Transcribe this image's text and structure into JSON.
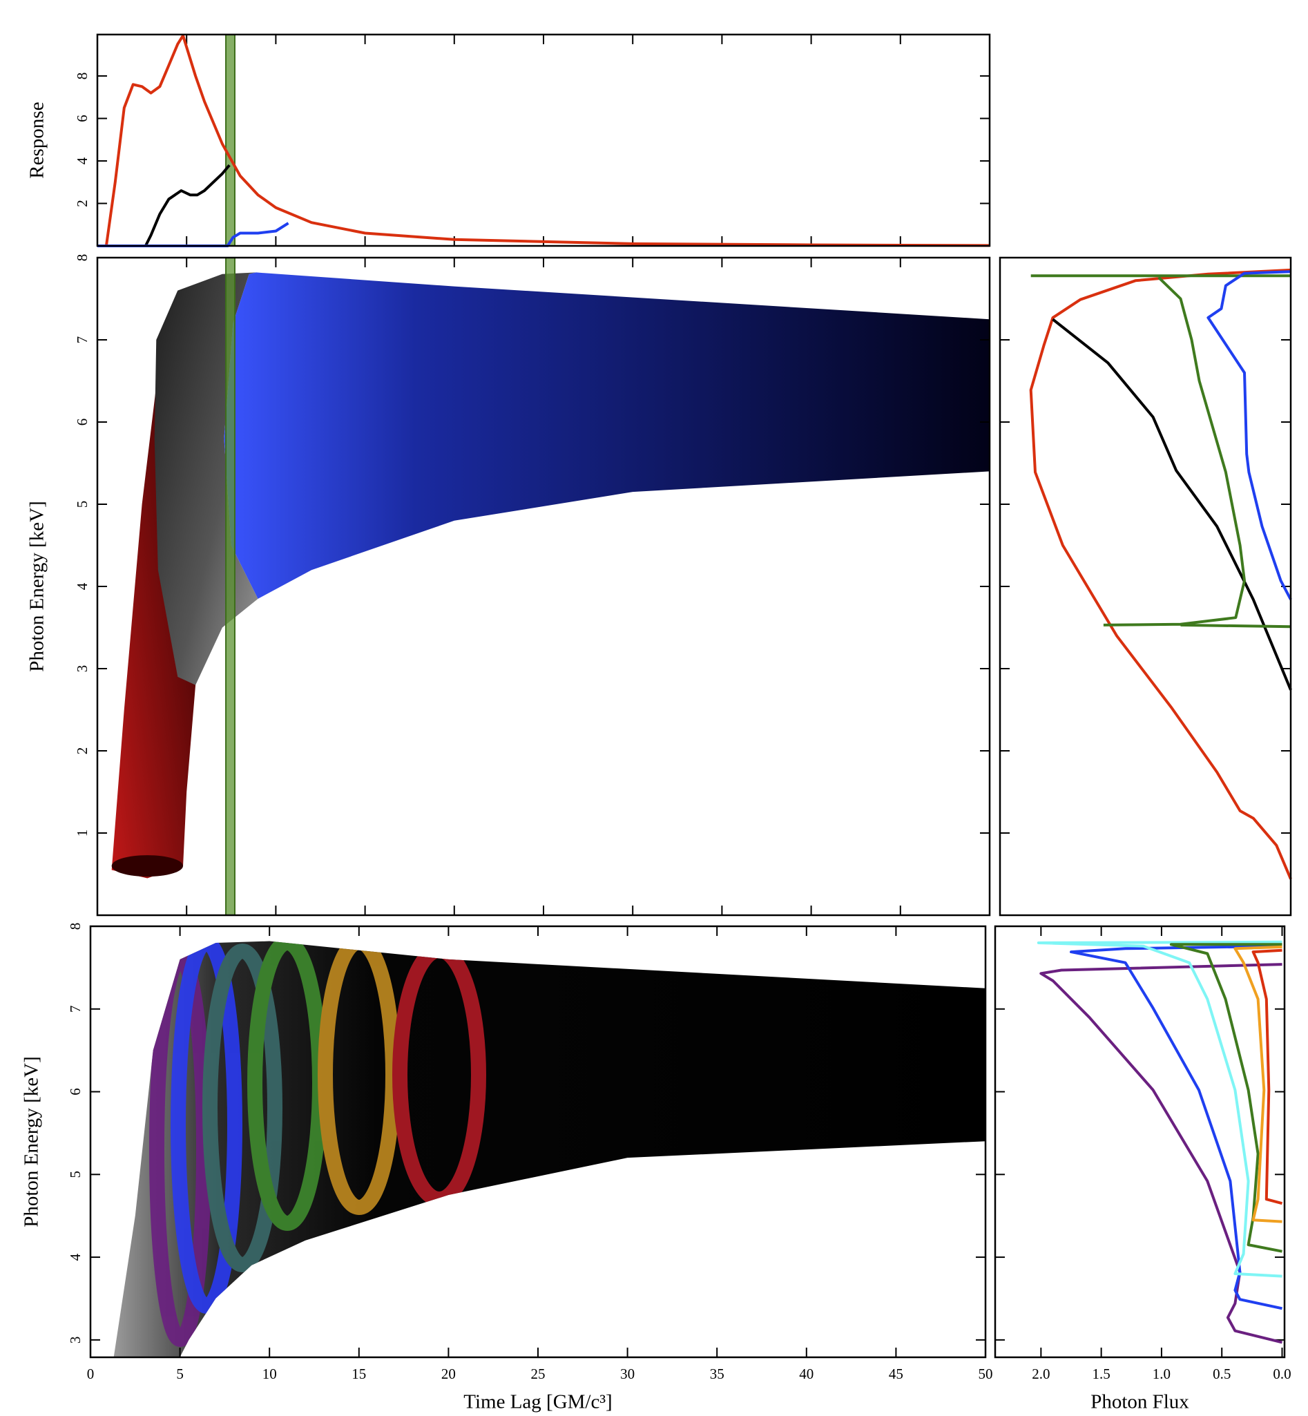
{
  "chart_data": [
    {
      "type": "line",
      "ylabel": "Response",
      "xlim": [
        0,
        50
      ],
      "ylim": [
        0,
        9.95
      ],
      "yticks": [
        2,
        4,
        6,
        8
      ],
      "highlight": [
        7.2,
        7.7
      ],
      "highlight_color": "#5e9433",
      "series": [
        {
          "color": "#d9300f",
          "x": [
            0.5,
            1,
            1.5,
            2,
            2.5,
            3,
            3.5,
            4,
            4.5,
            4.8,
            5.5,
            6,
            7,
            8,
            9,
            10,
            12,
            15,
            20,
            30,
            40,
            50
          ],
          "values": [
            0,
            3,
            6.5,
            7.6,
            7.5,
            7.2,
            7.5,
            8.5,
            9.5,
            9.9,
            8,
            6.8,
            4.8,
            3.3,
            2.4,
            1.8,
            1.1,
            0.6,
            0.3,
            0.1,
            0.05,
            0.02
          ]
        },
        {
          "color": "#000000",
          "x": [
            2.7,
            3,
            3.5,
            4,
            4.7,
            5.2,
            5.6,
            6,
            7,
            7.4
          ],
          "values": [
            0,
            0.5,
            1.5,
            2.2,
            2.6,
            2.4,
            2.4,
            2.6,
            3.4,
            3.8
          ]
        },
        {
          "color": "#1f3ff0",
          "x": [
            0,
            7.3,
            7.6,
            8,
            9,
            10,
            10.7
          ],
          "values": [
            0,
            0,
            0.4,
            0.6,
            0.6,
            0.7,
            1.07
          ]
        }
      ]
    },
    {
      "type": "surface",
      "ylabel": "Photon Energy [keV]",
      "xlim": [
        0,
        50
      ],
      "ylim": [
        0,
        8
      ],
      "yticks": [
        1,
        2,
        3,
        4,
        5,
        6,
        7,
        8
      ]
    },
    {
      "type": "line",
      "xlim": [
        2.64,
        0
      ],
      "ylim": [
        0,
        8
      ],
      "series": [
        {
          "color": "#d9300f",
          "flux": [
            0,
            0.13,
            0.34,
            0.46,
            0.67,
            1.08,
            1.58,
            2.07,
            2.32,
            2.36,
            2.24,
            2.16,
            1.91,
            1.41,
            0.75,
            0
          ],
          "energy": [
            0.44,
            0.85,
            1.18,
            1.27,
            1.74,
            2.52,
            3.4,
            4.5,
            5.39,
            6.39,
            6.94,
            7.27,
            7.49,
            7.72,
            7.8,
            7.85
          ]
        },
        {
          "color": "#000000",
          "flux": [
            2.16,
            1.66,
            1.25,
            1.04,
            0.67,
            0.34,
            0
          ],
          "energy": [
            7.25,
            6.72,
            6.06,
            5.41,
            4.73,
            3.84,
            2.74
          ]
        },
        {
          "color": "#3f7a1e",
          "flux": [
            2.36,
            0,
            null,
            1.2,
            1.0,
            0.9,
            0.83,
            0.59,
            0.46,
            0.42,
            0.5,
            1.0,
            1.7,
            null,
            1.0,
            0
          ],
          "energy": [
            7.78,
            7.78,
            null,
            7.76,
            7.5,
            7.0,
            6.5,
            5.39,
            4.5,
            4.07,
            3.62,
            3.54,
            3.53,
            null,
            3.53,
            3.51
          ]
        },
        {
          "color": "#1f3ff0",
          "flux": [
            0,
            0.42,
            0.59,
            0.63,
            0.75,
            0.42,
            0.4,
            0.38,
            0.26,
            0.09,
            0
          ],
          "energy": [
            7.83,
            7.81,
            7.66,
            7.38,
            7.27,
            6.6,
            5.61,
            5.39,
            4.73,
            4.07,
            3.84
          ]
        }
      ]
    },
    {
      "type": "surface",
      "xlabel": "Time Lag [GM/c³]",
      "ylabel": "Photon Energy [keV]",
      "xlim": [
        0,
        50
      ],
      "xticks": [
        0,
        5,
        10,
        15,
        20,
        25,
        30,
        35,
        40,
        45,
        50
      ],
      "ylim": [
        2.79,
        8
      ],
      "yticks": [
        3,
        4,
        5,
        6,
        7,
        8
      ]
    },
    {
      "type": "line",
      "xlabel": "Photon Flux",
      "xlim": [
        2.38,
        -0.02
      ],
      "ylim": [
        2.79,
        8
      ],
      "xticks": [
        {
          "value": 2,
          "label": "2.0"
        },
        1.5,
        {
          "value": 1,
          "label": "1.0"
        },
        0.5,
        {
          "value": 0,
          "label": "0.0"
        }
      ],
      "series": [
        {
          "color": "#6a2080",
          "flux": [
            0,
            0.39,
            0.45,
            0.39,
            0.35,
            0.62,
            1.07,
            1.6,
            1.9,
            2.0,
            1.83,
            0
          ],
          "energy": [
            2.97,
            3.11,
            3.27,
            3.44,
            3.82,
            4.92,
            6.02,
            6.9,
            7.34,
            7.43,
            7.47,
            7.54
          ]
        },
        {
          "color": "#1f3ff0",
          "flux": [
            0,
            0.35,
            0.39,
            0.35,
            0.43,
            0.69,
            1.07,
            1.3,
            1.75,
            1.3,
            0
          ],
          "energy": [
            3.38,
            3.49,
            3.6,
            3.82,
            4.92,
            6.02,
            7.01,
            7.56,
            7.69,
            7.73,
            7.76
          ]
        },
        {
          "color": "#7ff5f5",
          "flux": [
            0,
            0.39,
            0.32,
            0.28,
            0.39,
            0.62,
            0.77,
            1.15,
            2.02,
            0
          ],
          "energy": [
            3.77,
            3.8,
            4.04,
            4.92,
            6.02,
            7.12,
            7.56,
            7.76,
            7.8,
            7.81
          ]
        },
        {
          "color": "#3f7a1e",
          "flux": [
            0,
            0.28,
            0.24,
            0.2,
            0.28,
            0.47,
            0.62,
            0.92,
            0
          ],
          "energy": [
            4.07,
            4.15,
            4.48,
            5.25,
            6.02,
            7.12,
            7.67,
            7.78,
            7.78
          ]
        },
        {
          "color": "#f0a020",
          "flux": [
            0,
            0.24,
            0.2,
            0.15,
            0.2,
            0.32,
            0.39,
            0
          ],
          "energy": [
            4.43,
            4.45,
            4.7,
            6.02,
            7.12,
            7.56,
            7.73,
            7.75
          ]
        },
        {
          "color": "#d9300f",
          "flux": [
            0,
            0.13,
            0.11,
            0.13,
            0.2,
            0.24,
            0
          ],
          "energy": [
            4.65,
            4.7,
            6.02,
            7.12,
            7.56,
            7.69,
            7.71
          ]
        }
      ]
    }
  ]
}
